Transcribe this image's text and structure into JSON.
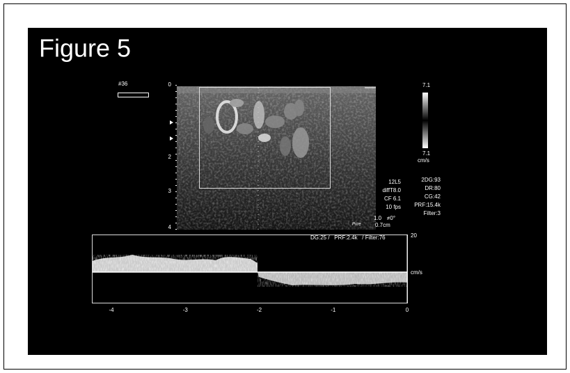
{
  "figure_label": "Figure 5",
  "frame_number": "#36",
  "depth_scale": [
    "0",
    "2",
    "3",
    "4"
  ],
  "color_scale": {
    "top": "7.1",
    "bottom": "7.1",
    "unit": "cm/s"
  },
  "settings_left": [
    "12L5",
    "diffT8.0",
    "CF 6.1",
    "10 fps"
  ],
  "probe": {
    "value": "1.0",
    "angle": "≠0°",
    "depth": "0.7cm"
  },
  "settings_right": [
    "2DG:93",
    "DR:80",
    "CG:42",
    "PRF:15.4k",
    "Filter:3"
  ],
  "logo": "Pure",
  "doppler": {
    "settings": "DG:25 /   PRF:2.4k   / Filter:76",
    "scale_top": "20",
    "unit": "cm/s",
    "time_axis": [
      "-4",
      "-3",
      "-2",
      "-1",
      "0"
    ]
  }
}
